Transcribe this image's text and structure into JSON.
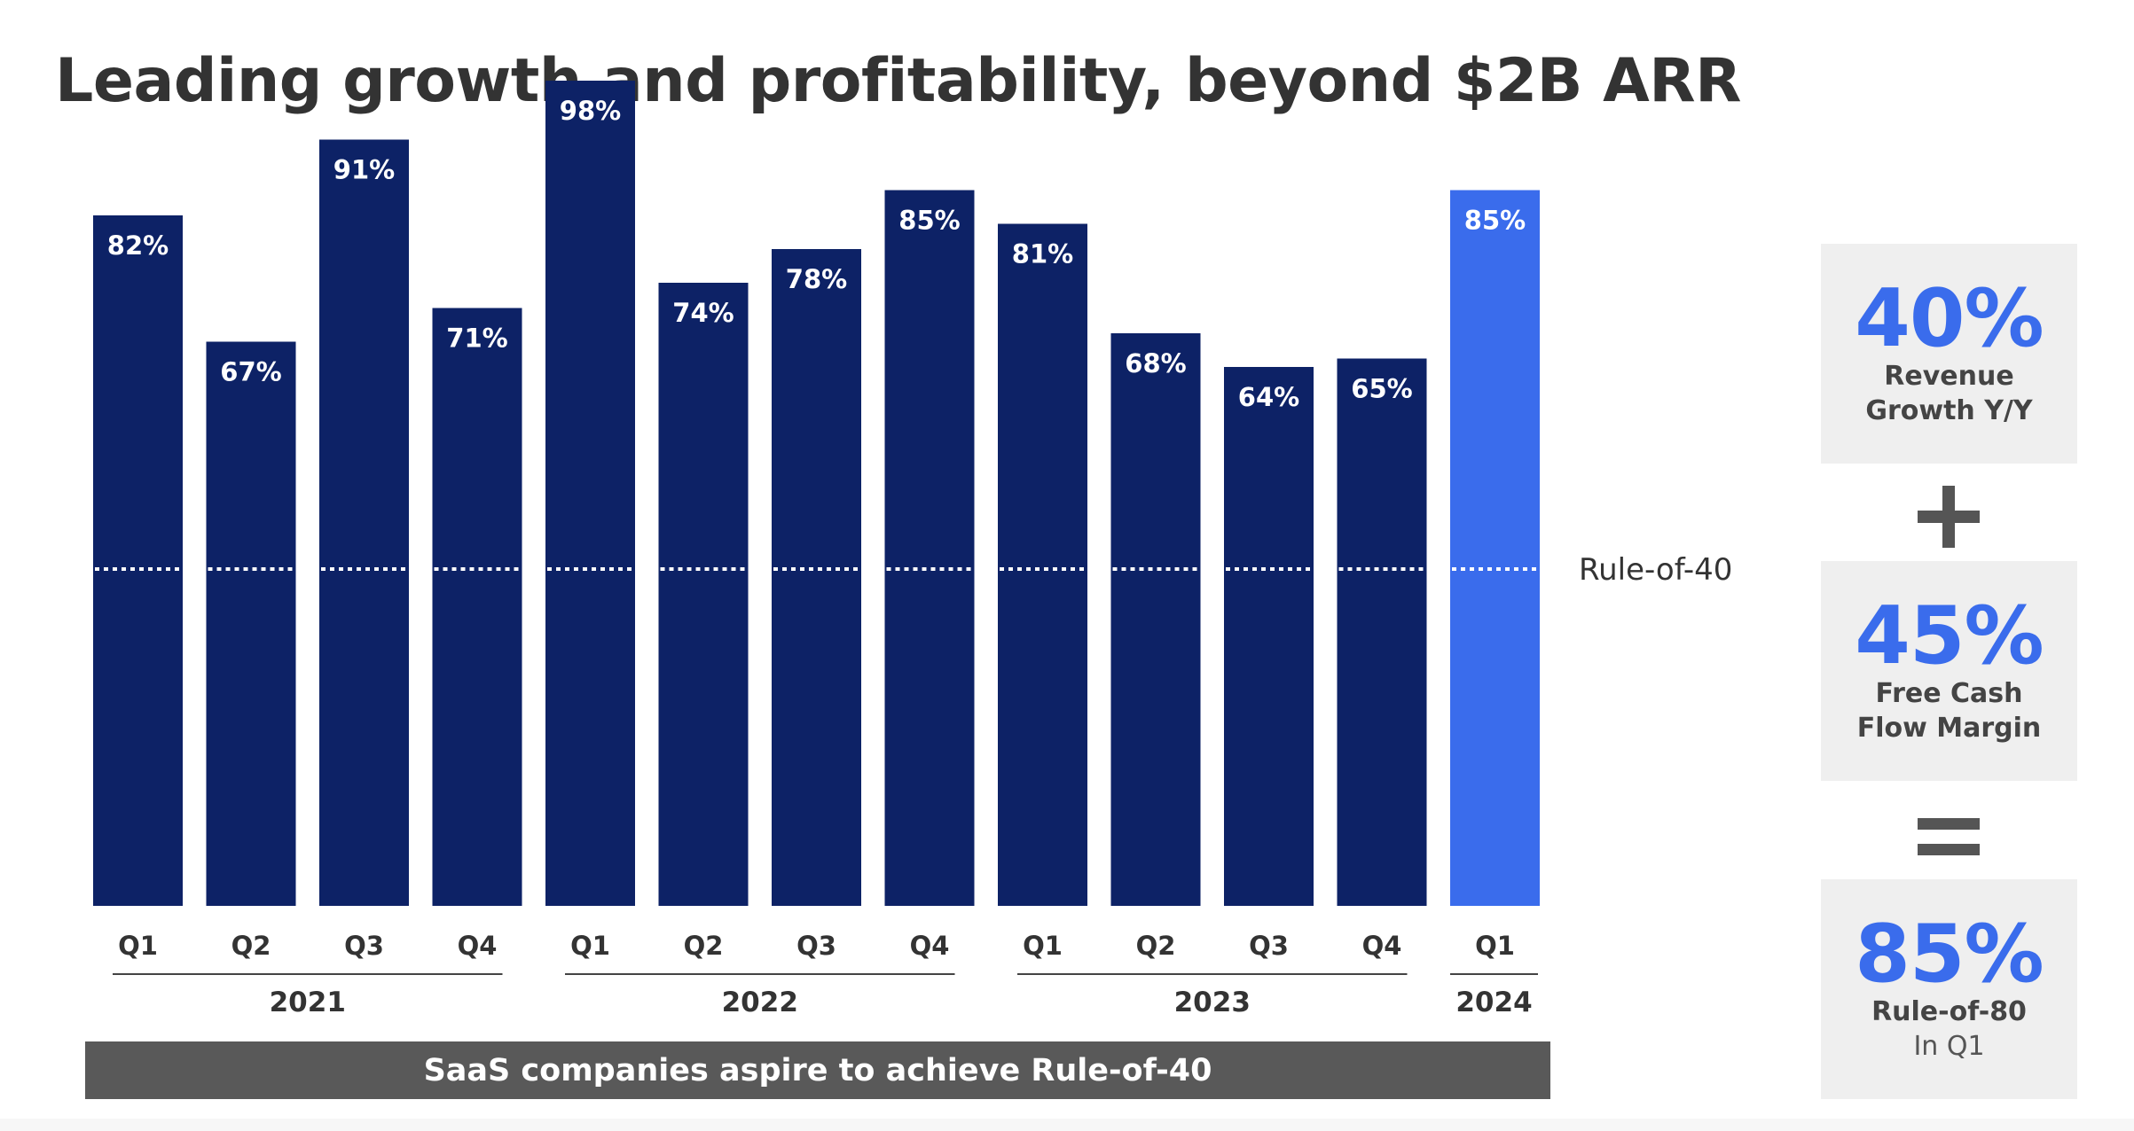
{
  "title": "Leading growth and profitability, beyond $2B ARR",
  "chart_data": {
    "type": "bar",
    "categories": [
      "Q1",
      "Q2",
      "Q3",
      "Q4",
      "Q1",
      "Q2",
      "Q3",
      "Q4",
      "Q1",
      "Q2",
      "Q3",
      "Q4",
      "Q1"
    ],
    "years": [
      {
        "label": "2021",
        "quarters": 4
      },
      {
        "label": "2022",
        "quarters": 4
      },
      {
        "label": "2023",
        "quarters": 4
      },
      {
        "label": "2024",
        "quarters": 1
      }
    ],
    "values": [
      82,
      67,
      91,
      71,
      98,
      74,
      78,
      85,
      81,
      68,
      64,
      65,
      85
    ],
    "value_labels": [
      "82%",
      "67%",
      "91%",
      "71%",
      "98%",
      "74%",
      "78%",
      "85%",
      "81%",
      "68%",
      "64%",
      "65%",
      "85%"
    ],
    "ylim": [
      0,
      100
    ],
    "highlight_index": 12,
    "reference_line": {
      "value": 40,
      "label": "Rule-of-40"
    },
    "colors": {
      "bar": "#0d2266",
      "highlight": "#3a6cec",
      "reference": "#ffffff"
    }
  },
  "banner": "SaaS companies aspire to achieve Rule-of-40",
  "cards": [
    {
      "value": "40%",
      "label": "Revenue\nGrowth Y/Y",
      "sub": ""
    },
    {
      "value": "45%",
      "label": "Free Cash\nFlow Margin",
      "sub": ""
    },
    {
      "value": "85%",
      "label": "Rule-of-80",
      "sub": "In Q1"
    }
  ],
  "operators": [
    "plus",
    "equals"
  ],
  "colors": {
    "accent": "#3a6cec",
    "title": "#333333",
    "card_bg": "#efefef"
  }
}
